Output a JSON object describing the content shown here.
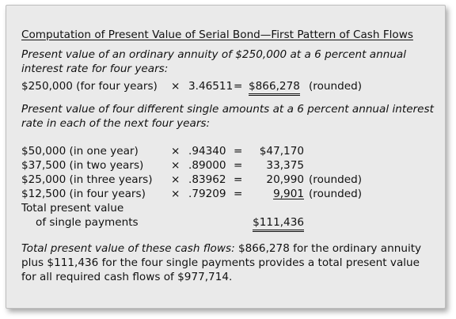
{
  "title": "Computation of Present Value of Serial Bond—First Pattern of Cash Flows",
  "section1": {
    "line1": "Present value of an ordinary annuity of $250,000 at a 6 percent annual",
    "line2": "interest rate for four years:",
    "calc": {
      "amount": "$250,000 (for four years)",
      "times": "×",
      "factor": "3.46511",
      "equals": "=",
      "result": "$866,278",
      "note": "(rounded)"
    }
  },
  "section2": {
    "line1": "Present value of four different single amounts at a 6 percent annual interest",
    "line2": "rate in each of the next four years:",
    "rows": [
      {
        "amount": "$50,000 (in one year)",
        "times": "×",
        "factor": ".94340",
        "equals": "=",
        "result": "$47,170",
        "note": ""
      },
      {
        "amount": "$37,500 (in two years)",
        "times": "×",
        "factor": ".89000",
        "equals": "=",
        "result": "33,375",
        "note": ""
      },
      {
        "amount": "$25,000 (in three years)",
        "times": "×",
        "factor": ".83962",
        "equals": "=",
        "result": "20,990",
        "note": "(rounded)"
      },
      {
        "amount": "$12,500 (in four years)",
        "times": "×",
        "factor": ".79209",
        "equals": "=",
        "result": "9,901",
        "note": "(rounded)"
      }
    ],
    "total_label_1": "Total present value",
    "total_label_2": "of single payments",
    "total_value": "$111,436"
  },
  "summary": {
    "prefix": "Total present value of these cash flows:",
    "rest_line1": " $866,278 for the ordinary annuity",
    "line2": "plus $111,436 for the four single payments provides a total present value",
    "line3": "for all required cash flows of $977,714."
  }
}
